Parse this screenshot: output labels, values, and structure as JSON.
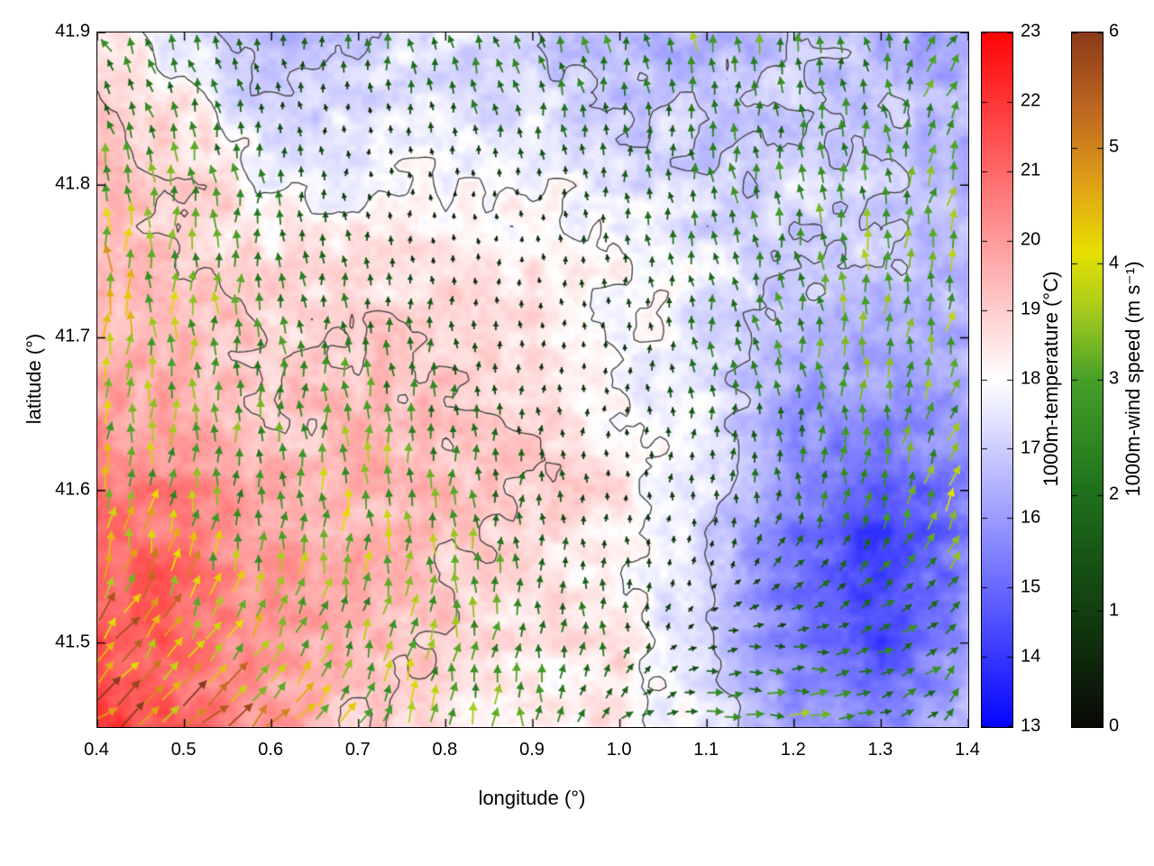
{
  "figure": {
    "xlabel": "longitude (°)",
    "ylabel": "latitude (°)",
    "x_range": [
      0.4,
      1.4
    ],
    "y_range": [
      41.445,
      41.9
    ],
    "x_ticks": [
      0.4,
      0.5,
      0.6,
      0.7,
      0.8,
      0.9,
      1.0,
      1.1,
      1.2,
      1.3,
      1.4
    ],
    "y_ticks": [
      41.5,
      41.6,
      41.7,
      41.8,
      41.9
    ]
  },
  "colorbars": {
    "temperature": {
      "label": "1000m-temperature (°C)",
      "range": [
        13,
        23
      ],
      "ticks": [
        13,
        14,
        15,
        16,
        17,
        18,
        19,
        20,
        21,
        22,
        23
      ],
      "stops": [
        {
          "v": 13,
          "c": "#0404ff"
        },
        {
          "v": 15.5,
          "c": "#8282ff"
        },
        {
          "v": 18,
          "c": "#ffffff"
        },
        {
          "v": 20.5,
          "c": "#ff8282"
        },
        {
          "v": 23,
          "c": "#ff0404"
        }
      ]
    },
    "wind": {
      "label": "1000m-wind speed (m s⁻¹)",
      "range": [
        0,
        6
      ],
      "ticks": [
        0,
        1,
        2,
        3,
        4,
        5,
        6
      ],
      "stops": [
        {
          "v": 0,
          "c": "#0a0a06"
        },
        {
          "v": 1,
          "c": "#123f10"
        },
        {
          "v": 2,
          "c": "#1e701c"
        },
        {
          "v": 3,
          "c": "#46a028"
        },
        {
          "v": 3.6,
          "c": "#a6cc1e"
        },
        {
          "v": 4.1,
          "c": "#e6e000"
        },
        {
          "v": 4.7,
          "c": "#e0a016"
        },
        {
          "v": 5.3,
          "c": "#c06a20"
        },
        {
          "v": 6,
          "c": "#8c3a1a"
        }
      ]
    }
  },
  "chart_data": {
    "type": "heatmap",
    "overlays": [
      "quiver",
      "contour"
    ],
    "description": "1000m temperature field (blue-white-red shading, 13-23 C) over lon 0.4-1.4, lat 41.445-41.9, with wind vectors colored by 1000m wind speed (0-6 m/s, black-green-yellow-orange-brown) and dark gray temperature contours. Warm air (19-22 C) in the southwest with strong NE-ward winds (4-6 m/s); cool air (13-16 C) in the east with a cold pocket near lon 1.25-1.35, lat 41.5-41.6; calm (<0.5 m/s) white band through the center and north-center; easterly 2-3 m/s jets along the south near lon 1.0-1.2.",
    "contour_levels_c": [
      17,
      18,
      19
    ],
    "lon": [
      0.4,
      0.5,
      0.6,
      0.7,
      0.8,
      0.9,
      1.0,
      1.1,
      1.2,
      1.3,
      1.4
    ],
    "lat": [
      41.9,
      41.85,
      41.8,
      41.75,
      41.7,
      41.65,
      41.6,
      41.55,
      41.5,
      41.45
    ],
    "temperature_c": [
      [
        18.5,
        17.5,
        16.5,
        17.0,
        17.5,
        17.0,
        16.5,
        16.5,
        17.0,
        16.5,
        16.0
      ],
      [
        19.0,
        18.5,
        17.0,
        17.5,
        17.5,
        17.5,
        17.0,
        17.0,
        17.0,
        17.0,
        16.5
      ],
      [
        19.5,
        19.0,
        18.0,
        18.0,
        18.0,
        18.0,
        17.5,
        17.0,
        17.5,
        17.0,
        16.5
      ],
      [
        19.5,
        19.0,
        18.5,
        18.5,
        18.5,
        18.5,
        18.0,
        17.5,
        17.0,
        17.0,
        16.5
      ],
      [
        19.5,
        19.5,
        19.0,
        19.0,
        19.0,
        18.5,
        18.0,
        17.5,
        16.5,
        16.5,
        16.5
      ],
      [
        20.0,
        19.5,
        19.0,
        19.5,
        19.0,
        19.0,
        18.0,
        17.5,
        16.0,
        16.0,
        16.0
      ],
      [
        20.5,
        20.5,
        19.5,
        19.5,
        19.5,
        19.0,
        18.5,
        17.5,
        15.5,
        14.5,
        15.5
      ],
      [
        21.0,
        21.0,
        20.0,
        19.5,
        19.0,
        18.5,
        18.0,
        17.0,
        15.0,
        14.0,
        15.5
      ],
      [
        21.5,
        21.0,
        20.0,
        19.5,
        19.0,
        18.5,
        18.5,
        17.0,
        15.5,
        14.5,
        16.0
      ],
      [
        22.0,
        21.0,
        20.0,
        19.0,
        18.5,
        18.0,
        18.5,
        17.5,
        16.0,
        15.5,
        16.5
      ]
    ],
    "wind": {
      "dir_convention": "dir_deg = direction arrow points, degrees counterclockwise from east (90 = northward)",
      "speed_ms": [
        [
          2.5,
          2.0,
          1.5,
          2.0,
          2.5,
          2.0,
          2.5,
          3.0,
          2.5,
          2.0,
          3.0
        ],
        [
          2.0,
          2.0,
          1.0,
          0.5,
          1.5,
          2.0,
          1.5,
          2.0,
          2.0,
          2.5,
          3.0
        ],
        [
          3.5,
          3.0,
          2.0,
          0.5,
          0.3,
          0.5,
          1.5,
          2.0,
          2.5,
          2.5,
          3.0
        ],
        [
          4.0,
          3.0,
          2.0,
          1.5,
          0.5,
          0.5,
          1.0,
          2.0,
          2.5,
          3.0,
          3.5
        ],
        [
          4.0,
          3.5,
          2.5,
          2.0,
          1.5,
          0.5,
          0.5,
          2.0,
          2.5,
          3.0,
          3.0
        ],
        [
          3.5,
          3.0,
          2.5,
          3.0,
          2.0,
          1.0,
          0.5,
          1.5,
          2.0,
          2.5,
          3.0
        ],
        [
          4.0,
          3.0,
          2.5,
          3.5,
          2.5,
          1.5,
          0.5,
          1.0,
          2.0,
          2.5,
          3.5
        ],
        [
          4.5,
          4.0,
          3.0,
          3.0,
          3.5,
          2.0,
          1.0,
          0.5,
          1.5,
          2.0,
          3.0
        ],
        [
          5.0,
          4.5,
          3.5,
          3.0,
          3.0,
          2.5,
          1.5,
          1.0,
          1.5,
          2.0,
          2.5
        ],
        [
          5.5,
          5.0,
          4.5,
          3.5,
          3.0,
          2.5,
          2.0,
          2.5,
          3.0,
          2.0,
          2.5
        ]
      ],
      "dir_deg": [
        [
          120,
          110,
          100,
          90,
          100,
          110,
          100,
          95,
          90,
          100,
          45
        ],
        [
          110,
          105,
          100,
          90,
          95,
          100,
          95,
          90,
          90,
          95,
          60
        ],
        [
          90,
          95,
          90,
          90,
          90,
          90,
          95,
          100,
          95,
          90,
          70
        ],
        [
          90,
          90,
          90,
          95,
          90,
          90,
          90,
          100,
          100,
          95,
          80
        ],
        [
          90,
          90,
          95,
          90,
          90,
          90,
          90,
          95,
          100,
          90,
          75
        ],
        [
          85,
          90,
          90,
          90,
          90,
          90,
          90,
          90,
          95,
          85,
          70
        ],
        [
          80,
          85,
          90,
          90,
          90,
          90,
          90,
          85,
          90,
          80,
          60
        ],
        [
          70,
          75,
          80,
          85,
          90,
          90,
          90,
          85,
          45,
          50,
          60
        ],
        [
          50,
          55,
          60,
          70,
          80,
          85,
          90,
          10,
          0,
          20,
          45
        ],
        [
          35,
          40,
          45,
          60,
          80,
          90,
          45,
          0,
          0,
          10,
          60
        ]
      ]
    }
  }
}
